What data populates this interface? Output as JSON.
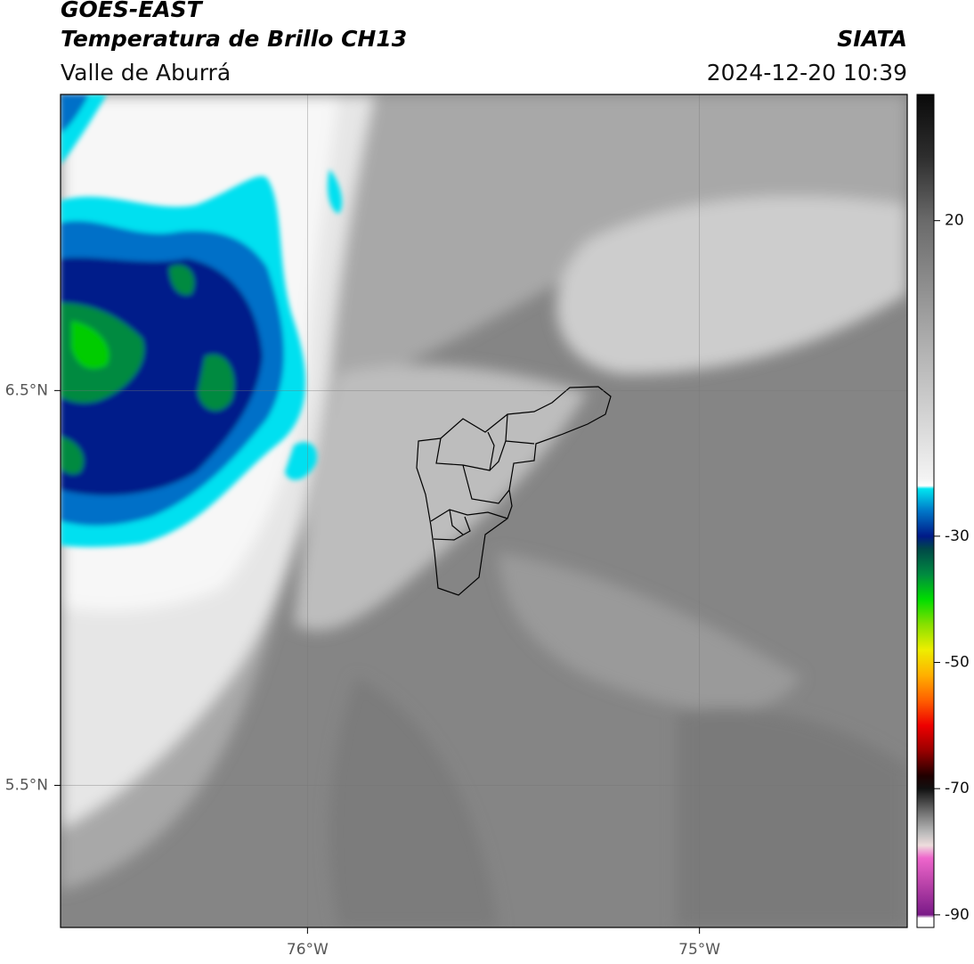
{
  "header": {
    "title": "GOES-EAST",
    "subtitle": "Temperatura de Brillo CH13",
    "region": "Valle de Aburrá",
    "source": "SIATA",
    "datetime": "2024-12-20 10:39"
  },
  "map": {
    "xlim": [
      -76.63,
      -74.47
    ],
    "ylim": [
      5.14,
      7.25
    ],
    "xticks": [
      {
        "value": -76,
        "label": "76°W"
      },
      {
        "value": -75,
        "label": "75°W"
      }
    ],
    "yticks": [
      {
        "value": 6.5,
        "label": "6.5°N"
      },
      {
        "value": 5.5,
        "label": "5.5°N"
      }
    ],
    "grid": true
  },
  "colorbar": {
    "lim": [
      -92,
      40
    ],
    "ticks": [
      20,
      -30,
      -50,
      -70,
      -90
    ],
    "colormap": [
      {
        "value": 40,
        "color": "#0a0a0a"
      },
      {
        "value": 30,
        "color": "#2e2e2e"
      },
      {
        "value": 20,
        "color": "#6a6a6a"
      },
      {
        "value": 0,
        "color": "#b0b0b0"
      },
      {
        "value": -21,
        "color": "#f4f4f4"
      },
      {
        "value": -22,
        "color": "#ffffff"
      },
      {
        "value": -22.5,
        "color": "#00e5f0"
      },
      {
        "value": -26,
        "color": "#0077c8"
      },
      {
        "value": -30,
        "color": "#001a88"
      },
      {
        "value": -32,
        "color": "#004848"
      },
      {
        "value": -36,
        "color": "#008a40"
      },
      {
        "value": -40,
        "color": "#00dd00"
      },
      {
        "value": -44,
        "color": "#88e000"
      },
      {
        "value": -48,
        "color": "#eeee00"
      },
      {
        "value": -52,
        "color": "#ffb000"
      },
      {
        "value": -56,
        "color": "#ff6000"
      },
      {
        "value": -60,
        "color": "#ee0000"
      },
      {
        "value": -64,
        "color": "#990000"
      },
      {
        "value": -68,
        "color": "#200000"
      },
      {
        "value": -70,
        "color": "#111111"
      },
      {
        "value": -74,
        "color": "#777777"
      },
      {
        "value": -77,
        "color": "#bbbbbb"
      },
      {
        "value": -79,
        "color": "#eedddd"
      },
      {
        "value": -81,
        "color": "#ee66cc"
      },
      {
        "value": -85,
        "color": "#bb44aa"
      },
      {
        "value": -90,
        "color": "#7a1a88"
      },
      {
        "value": -90.5,
        "color": "#ffffff"
      },
      {
        "value": -92,
        "color": "#ffffff"
      }
    ]
  }
}
